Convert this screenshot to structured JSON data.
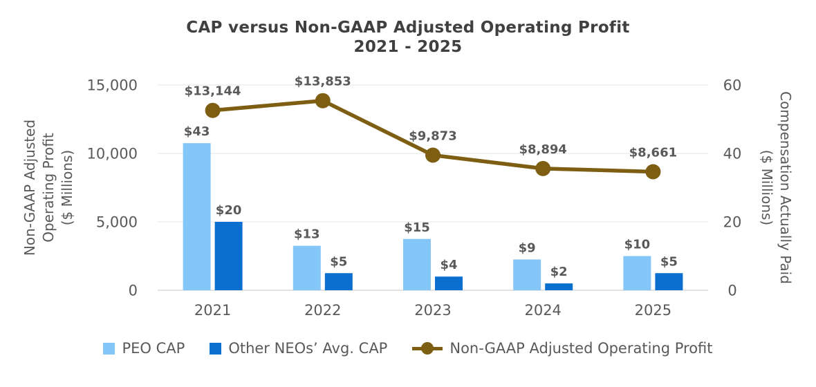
{
  "title": {
    "line1": "CAP versus Non-GAAP Adjusted Operating Profit",
    "line2": "2021 - 2025"
  },
  "colors": {
    "gridline": "#E6E6E6",
    "axis_line": "#D9D9D9",
    "title_text": "#404040",
    "label_text": "#595959",
    "peo_cap_bar": "#85C6F8",
    "other_neos_bar": "#0B6FD0",
    "profit_line": "#7D5E12"
  },
  "chart_data": {
    "type": "bar+line",
    "title": "CAP versus Non-GAAP Adjusted Operating Profit 2021 - 2025",
    "categories": [
      "2021",
      "2022",
      "2023",
      "2024",
      "2025"
    ],
    "series": [
      {
        "name": "PEO CAP",
        "type": "bar",
        "axis": "right",
        "color": "#85C6F8",
        "values": [
          43,
          13,
          15,
          9,
          10
        ],
        "labels": [
          "$43",
          "$13",
          "$15",
          "$9",
          "$10"
        ]
      },
      {
        "name": "Other NEOs’ Avg. CAP",
        "type": "bar",
        "axis": "right",
        "color": "#0B6FD0",
        "values": [
          20,
          5,
          4,
          2,
          5
        ],
        "labels": [
          "$20",
          "$5",
          "$4",
          "$2",
          "$5"
        ]
      },
      {
        "name": "Non-GAAP Adjusted Operating Profit",
        "type": "line",
        "axis": "left",
        "color": "#7D5E12",
        "values": [
          13144,
          13853,
          9873,
          8894,
          8661
        ],
        "labels": [
          "$13,144",
          "$13,853",
          "$9,873",
          "$8,894",
          "$8,661"
        ]
      }
    ],
    "left_axis": {
      "title_lines": [
        "Non-GAAP Adjusted",
        "Operating Profit",
        "($ Millions)"
      ],
      "ticks": [
        0,
        5000,
        10000,
        15000
      ],
      "tick_labels": [
        "0",
        "5,000",
        "10,000",
        "15,000"
      ],
      "range": [
        0,
        15000
      ]
    },
    "right_axis": {
      "title_lines": [
        "Compensation Actually Paid",
        "($ Millions)"
      ],
      "ticks": [
        0,
        20,
        40,
        60
      ],
      "tick_labels": [
        "0",
        "20",
        "40",
        "60"
      ],
      "range": [
        0,
        60
      ]
    },
    "grid": true,
    "legend_position": "bottom"
  }
}
